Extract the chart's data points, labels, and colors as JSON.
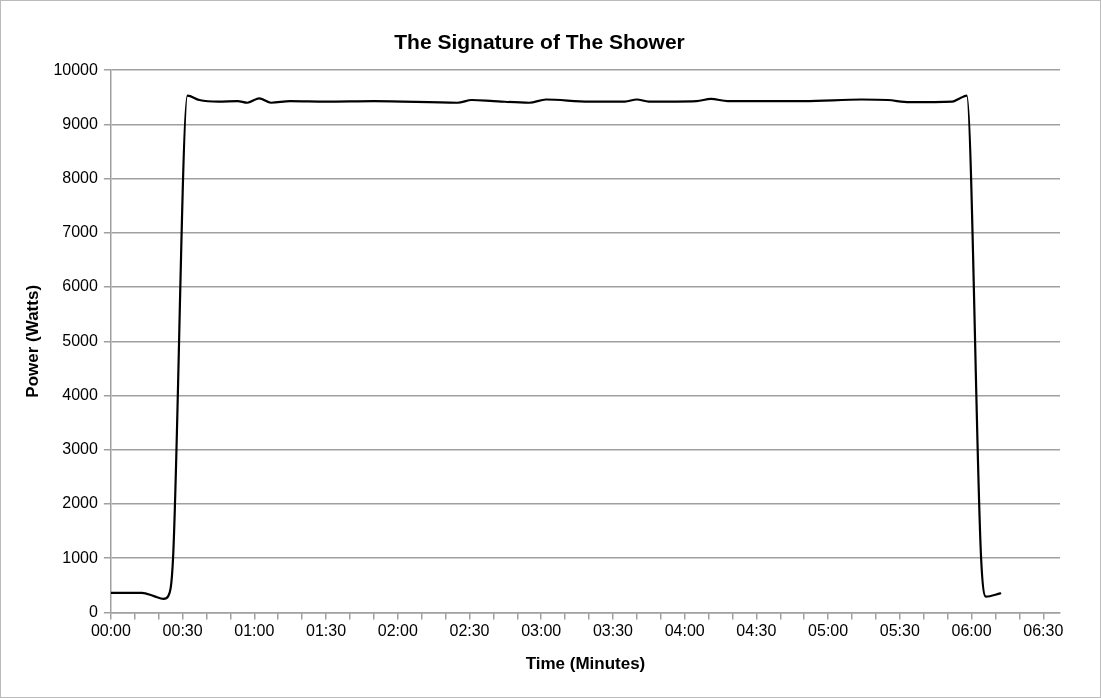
{
  "chart_data": {
    "type": "line",
    "title": "The Signature of The Shower",
    "xlabel": "Time (Minutes)",
    "ylabel": "Power (Watts)",
    "x": [
      0,
      13,
      18,
      22,
      24,
      26,
      32,
      37,
      45,
      53,
      57,
      62,
      67,
      75,
      90,
      110,
      145,
      151,
      160,
      175,
      182,
      200,
      215,
      220,
      225,
      245,
      251,
      258,
      290,
      314,
      325,
      334,
      352,
      355,
      358,
      364,
      366,
      372
    ],
    "series": [
      {
        "color": "#000000",
        "values": [
          360,
          360,
          300,
          250,
          300,
          1000,
          9530,
          9450,
          9420,
          9430,
          9400,
          9480,
          9400,
          9430,
          9420,
          9430,
          9400,
          9450,
          9430,
          9400,
          9460,
          9420,
          9420,
          9460,
          9420,
          9430,
          9470,
          9430,
          9430,
          9460,
          9450,
          9410,
          9420,
          9480,
          9530,
          1000,
          290,
          350
        ]
      }
    ],
    "xlim": [
      0,
      397
    ],
    "xticks": [
      {
        "value": 0,
        "label": "00:00"
      },
      {
        "value": 10,
        "label": null
      },
      {
        "value": 20,
        "label": null
      },
      {
        "value": 30,
        "label": "00:30"
      },
      {
        "value": 40,
        "label": null
      },
      {
        "value": 50,
        "label": null
      },
      {
        "value": 60,
        "label": "01:00"
      },
      {
        "value": 70,
        "label": null
      },
      {
        "value": 80,
        "label": null
      },
      {
        "value": 90,
        "label": "01:30"
      },
      {
        "value": 100,
        "label": null
      },
      {
        "value": 110,
        "label": null
      },
      {
        "value": 120,
        "label": "02:00"
      },
      {
        "value": 130,
        "label": null
      },
      {
        "value": 140,
        "label": null
      },
      {
        "value": 150,
        "label": "02:30"
      },
      {
        "value": 160,
        "label": null
      },
      {
        "value": 170,
        "label": null
      },
      {
        "value": 180,
        "label": "03:00"
      },
      {
        "value": 190,
        "label": null
      },
      {
        "value": 200,
        "label": null
      },
      {
        "value": 210,
        "label": "03:30"
      },
      {
        "value": 220,
        "label": null
      },
      {
        "value": 230,
        "label": null
      },
      {
        "value": 240,
        "label": "04:00"
      },
      {
        "value": 250,
        "label": null
      },
      {
        "value": 260,
        "label": null
      },
      {
        "value": 270,
        "label": "04:30"
      },
      {
        "value": 280,
        "label": null
      },
      {
        "value": 290,
        "label": null
      },
      {
        "value": 300,
        "label": "05:00"
      },
      {
        "value": 310,
        "label": null
      },
      {
        "value": 320,
        "label": null
      },
      {
        "value": 330,
        "label": "05:30"
      },
      {
        "value": 340,
        "label": null
      },
      {
        "value": 350,
        "label": null
      },
      {
        "value": 360,
        "label": "06:00"
      },
      {
        "value": 370,
        "label": null
      },
      {
        "value": 380,
        "label": null
      },
      {
        "value": 390,
        "label": "06:30"
      }
    ],
    "ylim": [
      0,
      10000
    ],
    "yticks": [
      0,
      1000,
      2000,
      3000,
      4000,
      5000,
      6000,
      7000,
      8000,
      9000,
      10000
    ],
    "grid": "y",
    "legend": false,
    "marker": "none",
    "line_style": "solid"
  }
}
